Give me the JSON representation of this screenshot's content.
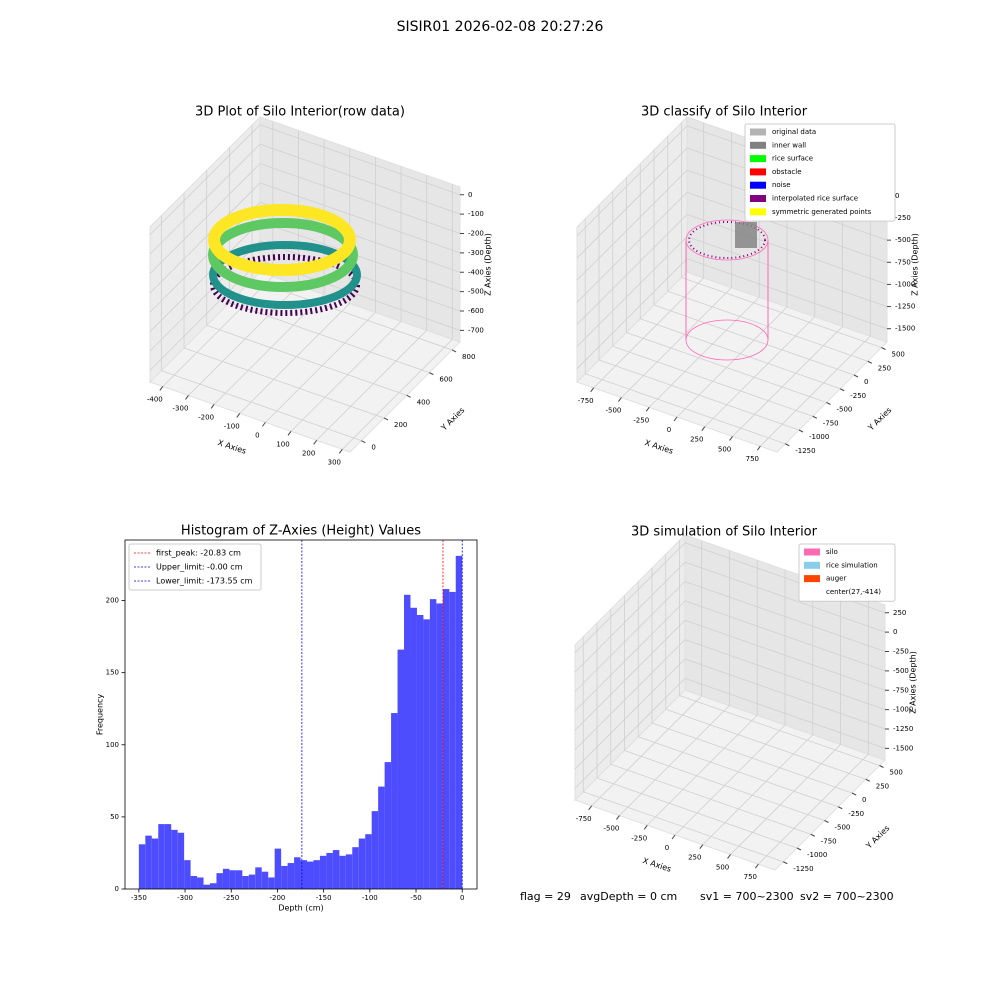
{
  "title": "SISIR01 2026-02-08 20:27:26",
  "status": [
    "flag = 29",
    "avgDepth = 0 cm",
    "sv1 = 700~2300",
    "sv2 = 700~2300"
  ],
  "chart_data": [
    {
      "type": "scatter3d",
      "title": "3D Plot of Silo Interior(row data)",
      "xlabel": "X Axies",
      "ylabel": "Y Axies",
      "zlabel": "Z Axies (Depth)",
      "xlim": [
        -450,
        330
      ],
      "xticks": [
        -400,
        -300,
        -200,
        -100,
        0,
        100,
        200,
        300
      ],
      "ylim": [
        -100,
        870
      ],
      "yticks": [
        0,
        200,
        400,
        600,
        800
      ],
      "zlim": [
        -760,
        40
      ],
      "zticks": [
        0,
        -100,
        -200,
        -300,
        -400,
        -500,
        -600,
        -700
      ]
    },
    {
      "type": "scatter3d",
      "title": "3D classify of Silo Interior",
      "xlabel": "X Axies",
      "ylabel": "Y Axies",
      "zlabel": "Z Axies (Depth)",
      "xlim": [
        -900,
        900
      ],
      "xticks": [
        -750,
        -500,
        -250,
        0,
        250,
        500,
        750
      ],
      "ylim": [
        -1400,
        600
      ],
      "yticks": [
        -1250,
        -1000,
        -750,
        -500,
        -250,
        0,
        250,
        500
      ],
      "zlim": [
        -1650,
        100
      ],
      "zticks": [
        0,
        -250,
        -500,
        -750,
        -1000,
        -1250,
        -1500
      ],
      "legend_loc": "upper right",
      "legend": [
        {
          "name": "original data",
          "color": "#b3b3b3"
        },
        {
          "name": "inner wall",
          "color": "#808080"
        },
        {
          "name": "rice surface",
          "color": "#00ff00"
        },
        {
          "name": "obstacle",
          "color": "#ff0000"
        },
        {
          "name": "noise",
          "color": "#0000ff"
        },
        {
          "name": "interpolated rice surface",
          "color": "#800080"
        },
        {
          "name": "symmetric generated points",
          "color": "#ffff00"
        }
      ]
    },
    {
      "type": "histogram",
      "title": "Histogram of Z-Axies (Height) Values",
      "xlabel": "Depth (cm)",
      "ylabel": "Frequency",
      "color": "#4d4dff",
      "bins": [
        -350,
        -343,
        -336,
        -329,
        -322,
        -315,
        -308,
        -301,
        -294,
        -287,
        -280,
        -273,
        -266,
        -259,
        -252,
        -245,
        -238,
        -231,
        -224,
        -217,
        -210,
        -203,
        -196,
        -189,
        -182,
        -175,
        -168,
        -161,
        -154,
        -147,
        -140,
        -133,
        -126,
        -119,
        -112,
        -105,
        -98,
        -91,
        -84,
        -77,
        -70,
        -63,
        -56,
        -49,
        -42,
        -35,
        -28,
        -21,
        -14,
        -7,
        0
      ],
      "counts": [
        31,
        37,
        35,
        45,
        45,
        41,
        39,
        20,
        9,
        8,
        3,
        4,
        11,
        14,
        13,
        13,
        9,
        10,
        15,
        12,
        8,
        28,
        16,
        18,
        22,
        20,
        19,
        20,
        23,
        25,
        27,
        23,
        24,
        29,
        35,
        38,
        54,
        71,
        88,
        122,
        166,
        204,
        195,
        190,
        187,
        201,
        198,
        208,
        206,
        231
      ],
      "xlim": [
        -365,
        16
      ],
      "xticks": [
        -350,
        -300,
        -250,
        -200,
        -150,
        -100,
        -50,
        0
      ],
      "ylim": [
        0,
        242
      ],
      "yticks": [
        0,
        50,
        100,
        150,
        200
      ],
      "legend_loc": "upper left",
      "vlines": [
        {
          "name": "first_peak: -20.83 cm",
          "value": -20.83,
          "color": "#ff0000"
        },
        {
          "name": "Upper_limit: -0.00 cm",
          "value": -0.0,
          "color": "#0000ff"
        },
        {
          "name": "Lower_limit: -173.55 cm",
          "value": -173.55,
          "color": "#0000ff"
        }
      ]
    },
    {
      "type": "scatter3d",
      "title": "3D simulation of Silo Interior",
      "xlabel": "X Axies",
      "ylabel": "Y Axies",
      "zlabel": "Z Axies (Depth)",
      "xlim": [
        -900,
        900
      ],
      "xticks": [
        -750,
        -500,
        -250,
        0,
        250,
        500,
        750
      ],
      "ylim": [
        -1400,
        600
      ],
      "yticks": [
        -1250,
        -1000,
        -750,
        -500,
        -250,
        0,
        250,
        500
      ],
      "zlim": [
        -1650,
        350
      ],
      "zticks": [
        250,
        0,
        -250,
        -500,
        -750,
        -1000,
        -1250,
        -1500
      ],
      "legend_loc": "upper right",
      "legend": [
        {
          "name": "silo",
          "color": "#ff69b4"
        },
        {
          "name": "rice simulation",
          "color": "#87ceeb"
        },
        {
          "name": "auger",
          "color": "#ff4500"
        },
        {
          "name": "center(27,-414)",
          "color": "none"
        }
      ]
    }
  ]
}
